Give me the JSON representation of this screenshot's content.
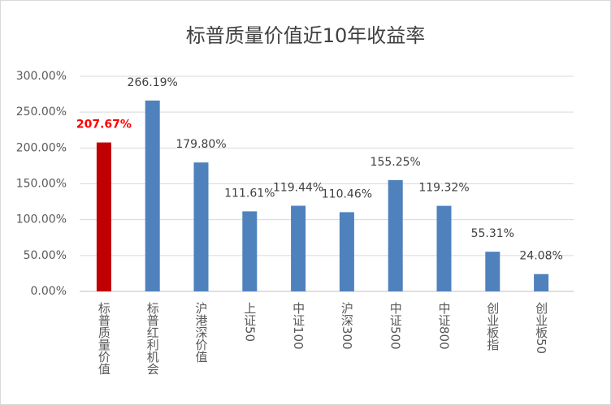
{
  "chart_data": {
    "type": "bar",
    "title": "标普质量价值近10年收益率",
    "categories": [
      "标普质量价值",
      "标普红利机会",
      "沪港深价值",
      "上证50",
      "中证100",
      "沪深300",
      "中证500",
      "中证800",
      "创业板指",
      "创业板50"
    ],
    "values": [
      207.67,
      266.19,
      179.8,
      111.61,
      119.44,
      110.46,
      155.25,
      119.32,
      55.31,
      24.08
    ],
    "value_labels": [
      "207.67%",
      "266.19%",
      "179.80%",
      "111.61%",
      "119.44%",
      "110.46%",
      "155.25%",
      "119.32%",
      "55.31%",
      "24.08%"
    ],
    "colors": [
      "#c00000",
      "#4f81bd",
      "#4f81bd",
      "#4f81bd",
      "#4f81bd",
      "#4f81bd",
      "#4f81bd",
      "#4f81bd",
      "#4f81bd",
      "#4f81bd"
    ],
    "label_colors": [
      "#ff0000",
      "#404040",
      "#404040",
      "#404040",
      "#404040",
      "#404040",
      "#404040",
      "#404040",
      "#404040",
      "#404040"
    ],
    "ylim": [
      0,
      300
    ],
    "yticks": [
      {
        "value": 0,
        "label": "0.00%"
      },
      {
        "value": 50,
        "label": "50.00%"
      },
      {
        "value": 100,
        "label": "100.00%"
      },
      {
        "value": 150,
        "label": "150.00%"
      },
      {
        "value": 200,
        "label": "200.00%"
      },
      {
        "value": 250,
        "label": "250.00%"
      },
      {
        "value": 300,
        "label": "300.00%"
      }
    ],
    "grid": true
  }
}
